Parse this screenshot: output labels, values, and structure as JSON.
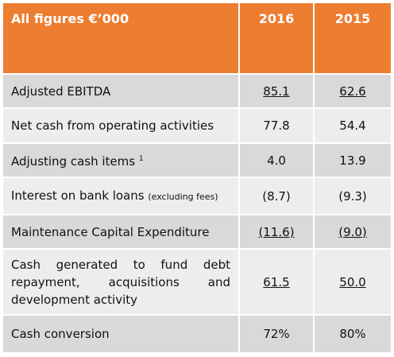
{
  "header": {
    "title": "All figures €’000",
    "columns": [
      "2016",
      "2015"
    ]
  },
  "rows": [
    {
      "label": "Adjusted EBITDA",
      "values": [
        "85.1",
        "62.6"
      ],
      "underline": true
    },
    {
      "label": "Net cash from operating activities",
      "values": [
        "77.8",
        "54.4"
      ],
      "underline": false
    },
    {
      "label": "Adjusting cash items",
      "footnote": "1",
      "values": [
        "4.0",
        "13.9"
      ],
      "underline": false
    },
    {
      "label": "Interest on bank loans",
      "note": "(excluding fees)",
      "values": [
        "(8.7)",
        "(9.3)"
      ],
      "underline": false
    },
    {
      "label": "Maintenance Capital Expenditure",
      "values": [
        "(11.6)",
        "(9.0)"
      ],
      "underline": true
    },
    {
      "label": "Cash generated to fund debt repayment, acquisitions and development activity",
      "values": [
        "61.5",
        "50.0"
      ],
      "underline": true
    },
    {
      "label": "Cash conversion",
      "values": [
        "72%",
        "80%"
      ],
      "underline": false
    }
  ]
}
